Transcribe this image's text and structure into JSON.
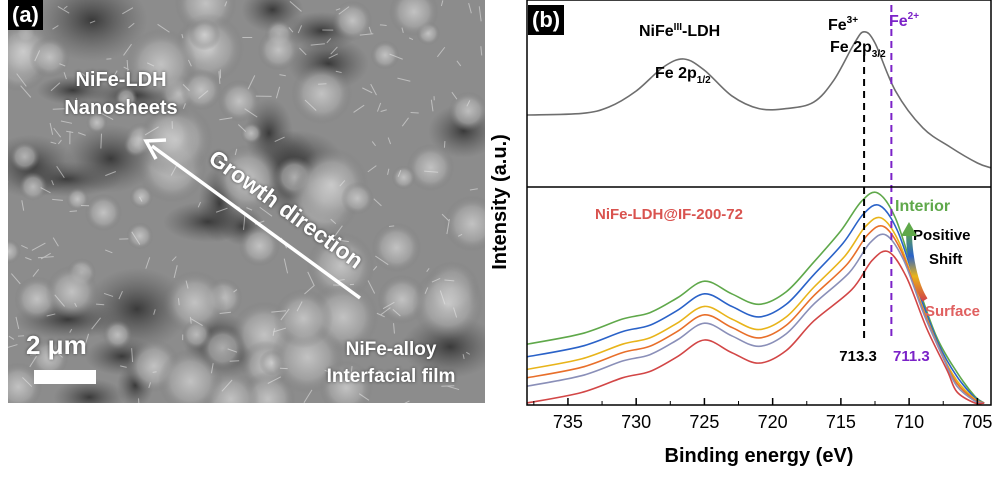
{
  "panel_a": {
    "label": "(a)",
    "nanosheets_line1": "NiFe-LDH",
    "nanosheets_line2": "Nanosheets",
    "growth_label": "Growth direction",
    "scale_label": "2 μm",
    "film_line1": "NiFe-alloy",
    "film_line2": "Interfacial film"
  },
  "panel_b": {
    "label": "(b)"
  },
  "colors": {
    "top_curve": "#6e6e6e",
    "fe3_line": "#000000",
    "fe2_line": "#7b22c8",
    "sample_label": "#d9534f",
    "interior": "#5fa84a",
    "surface": "#e06060",
    "series": [
      "#5fa84a",
      "#2a62c8",
      "#e8b41a",
      "#e86f2a",
      "#8a8fb8",
      "#d24646"
    ]
  },
  "chart_data": {
    "type": "line",
    "xlabel": "Binding energy (eV)",
    "ylabel": "Intensity (a.u.)",
    "xlim": [
      738,
      704
    ],
    "x_reversed": true,
    "xticks": [
      735,
      730,
      725,
      720,
      715,
      710,
      705
    ],
    "grid": false,
    "annotations": {
      "top_title": "NiFe",
      "top_title_sup": "III",
      "top_title_suffix": "-LDH",
      "fe_2p12_main": "Fe 2p",
      "fe_2p12_sub": "1/2",
      "fe3_main": "Fe",
      "fe3_sup": "3+",
      "fe_2p32_main": "Fe 2p",
      "fe_2p32_sub": "3/2",
      "fe2_main": "Fe",
      "fe2_sup": "2+",
      "sample": "NiFe-LDH@IF-200-72",
      "interior": "Interior",
      "positive": "Positive",
      "shift": "Shift",
      "surface": "Surface",
      "value_fe3": "713.3",
      "value_fe2": "711.3"
    },
    "reference_lines": [
      713.3,
      711.3
    ],
    "top_spectrum": {
      "x": [
        738,
        734,
        732,
        730,
        728,
        726.5,
        725,
        723,
        721,
        719,
        717,
        715.5,
        714,
        713.3,
        712.5,
        711,
        709,
        707,
        705,
        704
      ],
      "y": [
        0.4,
        0.41,
        0.45,
        0.55,
        0.7,
        0.75,
        0.68,
        0.52,
        0.44,
        0.44,
        0.48,
        0.62,
        0.85,
        0.92,
        0.85,
        0.55,
        0.32,
        0.2,
        0.1,
        0.07
      ]
    },
    "bottom_series": {
      "x": [
        738,
        734,
        731,
        729,
        727,
        725,
        723,
        721,
        719,
        717,
        715,
        713.5,
        712.3,
        711,
        709.5,
        708,
        706.5,
        705.2,
        704.5
      ],
      "offsets": [
        0.2,
        0.14,
        0.08,
        0.04,
        0.0,
        -0.08
      ],
      "peak_shift": [
        0.0,
        -0.15,
        -0.3,
        -0.45,
        -0.6,
        -0.8
      ],
      "base_y": [
        0.08,
        0.13,
        0.2,
        0.23,
        0.3,
        0.38,
        0.32,
        0.27,
        0.33,
        0.47,
        0.62,
        0.76,
        0.8,
        0.68,
        0.42,
        0.2,
        0.08,
        0.01,
        0.0
      ]
    }
  }
}
